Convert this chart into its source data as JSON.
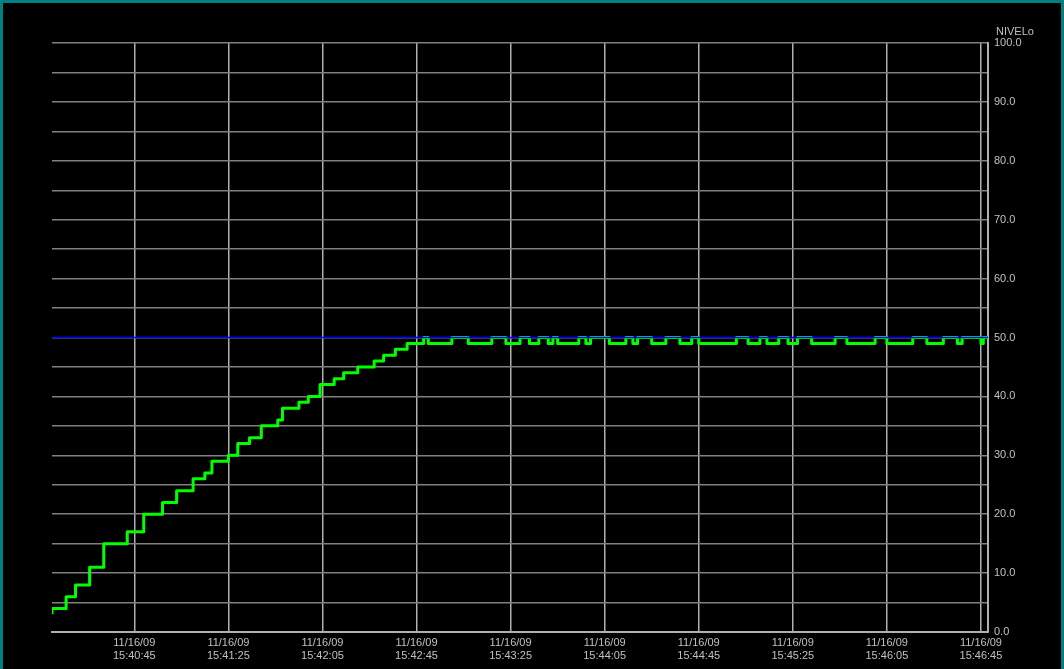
{
  "chart_data": {
    "type": "step",
    "ylabel": "NIVELo",
    "xlim": [
      "--11-16T15:40:10",
      "--11-16T15:46:48"
    ],
    "xticks": [
      {
        "value": "--11-16T15:40:45",
        "label": "11/16/09\n15:40:45"
      },
      {
        "value": "--11-16T15:41:25",
        "label": "11/16/09\n15:41:25"
      },
      {
        "value": "--11-16T15:42:05",
        "label": "11/16/09\n15:42:05"
      },
      {
        "value": "--11-16T15:42:45",
        "label": "11/16/09\n15:42:45"
      },
      {
        "value": "--11-16T15:43:25",
        "label": "11/16/09\n15:43:25"
      },
      {
        "value": "--11-16T15:44:05",
        "label": "11/16/09\n15:44:05"
      },
      {
        "value": "--11-16T15:44:45",
        "label": "11/16/09\n15:44:45"
      },
      {
        "value": "--11-16T15:45:25",
        "label": "11/16/09\n15:45:25"
      },
      {
        "value": "--11-16T15:46:05",
        "label": "11/16/09\n15:46:05"
      },
      {
        "value": "--11-16T15:46:45",
        "label": "11/16/09\n15:46:45"
      }
    ],
    "ylim": [
      0,
      100
    ],
    "yticks": [
      {
        "value": 0,
        "label": "0.0"
      },
      {
        "value": 5,
        "label": null
      },
      {
        "value": 10,
        "label": "10.0"
      },
      {
        "value": 15,
        "label": null
      },
      {
        "value": 20,
        "label": "20.0"
      },
      {
        "value": 25,
        "label": null
      },
      {
        "value": 30,
        "label": "30.0"
      },
      {
        "value": 35,
        "label": null
      },
      {
        "value": 40,
        "label": "40.0"
      },
      {
        "value": 45,
        "label": null
      },
      {
        "value": 50,
        "label": "50.0"
      },
      {
        "value": 55,
        "label": null
      },
      {
        "value": 60,
        "label": "60.0"
      },
      {
        "value": 65,
        "label": null
      },
      {
        "value": 70,
        "label": "70.0"
      },
      {
        "value": 75,
        "label": null
      },
      {
        "value": 80,
        "label": "80.0"
      },
      {
        "value": 85,
        "label": null
      },
      {
        "value": 90,
        "label": "90.0"
      },
      {
        "value": 95,
        "label": null
      },
      {
        "value": 100,
        "label": "100.0"
      }
    ],
    "grid": true,
    "legend": false,
    "marker": "none",
    "line_style": "solid",
    "ref_lines": [
      {
        "axis": "y",
        "value": 50,
        "color": "#0000ff",
        "line_style": "solid"
      }
    ],
    "series": [
      {
        "color": "#00ff00",
        "x": [
          "--11-16T15:40:10",
          "--11-16T15:40:16",
          "--11-16T15:40:20",
          "--11-16T15:40:26",
          "--11-16T15:40:32",
          "--11-16T15:40:42",
          "--11-16T15:40:49",
          "--11-16T15:40:57",
          "--11-16T15:41:03",
          "--11-16T15:41:10",
          "--11-16T15:41:15",
          "--11-16T15:41:18",
          "--11-16T15:41:25",
          "--11-16T15:41:29",
          "--11-16T15:41:34",
          "--11-16T15:41:39",
          "--11-16T15:41:46",
          "--11-16T15:41:48",
          "--11-16T15:41:55",
          "--11-16T15:41:59",
          "--11-16T15:42:04",
          "--11-16T15:42:10",
          "--11-16T15:42:14",
          "--11-16T15:42:20",
          "--11-16T15:42:27",
          "--11-16T15:42:31",
          "--11-16T15:42:36",
          "--11-16T15:42:41",
          "--11-16T15:42:48",
          "--11-16T15:42:50",
          "--11-16T15:43:00",
          "--11-16T15:43:07",
          "--11-16T15:43:17",
          "--11-16T15:43:23",
          "--11-16T15:43:29",
          "--11-16T15:43:33",
          "--11-16T15:43:37",
          "--11-16T15:43:41",
          "--11-16T15:43:43",
          "--11-16T15:43:45",
          "--11-16T15:43:54",
          "--11-16T15:43:57",
          "--11-16T15:43:59",
          "--11-16T15:44:07",
          "--11-16T15:44:14",
          "--11-16T15:44:17",
          "--11-16T15:44:19",
          "--11-16T15:44:25",
          "--11-16T15:44:31",
          "--11-16T15:44:37",
          "--11-16T15:44:42",
          "--11-16T15:44:45",
          "--11-16T15:45:01",
          "--11-16T15:45:06",
          "--11-16T15:45:11",
          "--11-16T15:45:14",
          "--11-16T15:45:19",
          "--11-16T15:45:23",
          "--11-16T15:45:27",
          "--11-16T15:45:33",
          "--11-16T15:45:43",
          "--11-16T15:45:48",
          "--11-16T15:46:00",
          "--11-16T15:46:05",
          "--11-16T15:46:16",
          "--11-16T15:46:22",
          "--11-16T15:46:29",
          "--11-16T15:46:35",
          "--11-16T15:46:37",
          "--11-16T15:46:45",
          "--11-16T15:46:46",
          "--11-16T15:46:48"
        ],
        "values": [
          3,
          4,
          6,
          8,
          11,
          15,
          17,
          20,
          22,
          24,
          26,
          27,
          29,
          30,
          32,
          33,
          35,
          36,
          38,
          39,
          40,
          42,
          43,
          44,
          45,
          46,
          47,
          48,
          49,
          50,
          49,
          50,
          49,
          50,
          49,
          50,
          49,
          50,
          49,
          50,
          49,
          50,
          49,
          50,
          49,
          50,
          49,
          50,
          49,
          50,
          49,
          50,
          49,
          50,
          49,
          50,
          49,
          50,
          49,
          50,
          49,
          50,
          49,
          50,
          49,
          50,
          49,
          50,
          49,
          50,
          49,
          50
        ]
      }
    ]
  }
}
